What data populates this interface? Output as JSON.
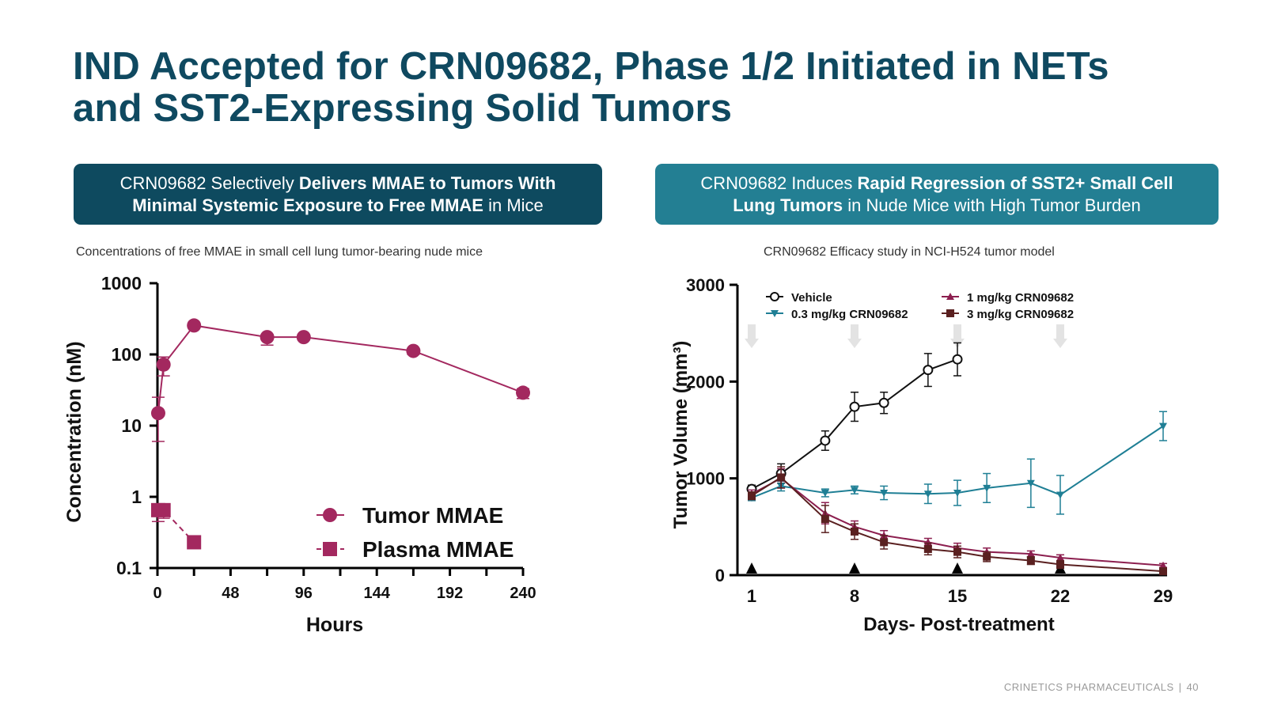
{
  "slide": {
    "title_line1": "IND Accepted for CRN09682, Phase 1/2 Initiated in NETs",
    "title_line2": "and SST2-Expressing Solid Tumors"
  },
  "banners": {
    "left": {
      "l1_a": "CRN09682 Selectively ",
      "l1_b": "Delivers MMAE to Tumors With",
      "l2_a": "Minimal Systemic Exposure to Free MMAE",
      "l2_b": " in Mice"
    },
    "right": {
      "l1_a": "CRN09682 Induces ",
      "l1_b": "Rapid Regression of SST2+ Small Cell",
      "l2_a": "Lung Tumors",
      "l2_b": " in Nude Mice with High Tumor Burden"
    }
  },
  "subtitles": {
    "left": "Concentrations of free MMAE in small cell lung tumor-bearing nude mice",
    "right": "CRN09682 Efficacy study in NCI-H524 tumor model"
  },
  "footer": {
    "company": "CRINETICS PHARMACEUTICALS",
    "separator": "|",
    "page": "40"
  },
  "colors": {
    "title": "#0f4960",
    "banner_left": "#0e4a5f",
    "banner_right": "#237f93",
    "tumor_mmae": "#a3285f",
    "plasma_mmae": "#a3285f",
    "vehicle": "#111111",
    "dose_0_3": "#1f7f95",
    "dose_1": "#8c1f4f",
    "dose_3": "#5a2020",
    "dose_arrow": "#e3e3e3"
  },
  "chart_data": [
    {
      "type": "scatter",
      "yscale": "log",
      "xlabel": "Hours",
      "ylabel": "Concentration (nM)",
      "xlim": [
        0,
        240
      ],
      "ylim": [
        0.1,
        1000
      ],
      "xticks": [
        0,
        48,
        96,
        144,
        192,
        240
      ],
      "xtick_labels": [
        "0",
        "48",
        "96",
        "144",
        "192",
        "240"
      ],
      "yticks": [
        0.1,
        1,
        10,
        100,
        1000
      ],
      "ytick_labels": [
        "0.1",
        "1",
        "10",
        "100",
        "1000"
      ],
      "legend_position": "bottom-right",
      "series": [
        {
          "name": "Tumor MMAE",
          "marker": "circle",
          "line": "solid",
          "x": [
            0.5,
            4,
            24,
            72,
            96,
            168,
            240
          ],
          "y": [
            15,
            72,
            255,
            175,
            175,
            112,
            29
          ],
          "err_low": [
            6,
            50,
            240,
            135,
            160,
            100,
            24
          ],
          "err_high": [
            25,
            92,
            270,
            190,
            185,
            120,
            33
          ]
        },
        {
          "name": "Plasma MMAE",
          "marker": "square",
          "line": "dashed",
          "x": [
            0.5,
            4,
            24
          ],
          "y": [
            0.65,
            0.65,
            0.23
          ],
          "err_low": [
            0.45,
            0.5,
            0.2
          ],
          "err_high": [
            0.8,
            0.8,
            0.26
          ]
        }
      ]
    },
    {
      "type": "line",
      "xlabel": "Days- Post-treatment",
      "ylabel": "Tumor Volume (mm³)",
      "xlim": [
        1,
        29
      ],
      "ylim": [
        0,
        3000
      ],
      "xticks": [
        1,
        8,
        15,
        22,
        29
      ],
      "xtick_labels": [
        "1",
        "8",
        "15",
        "22",
        "29"
      ],
      "yticks": [
        0,
        1000,
        2000,
        3000
      ],
      "ytick_labels": [
        "0",
        "1000",
        "2000",
        "3000"
      ],
      "dosing_days": [
        1,
        8,
        15,
        22
      ],
      "legend_position": "top",
      "series": [
        {
          "name": "Vehicle",
          "marker": "circle-open",
          "x": [
            1,
            3,
            6,
            8,
            10,
            13,
            15
          ],
          "y": [
            890,
            1050,
            1390,
            1740,
            1780,
            2120,
            2230
          ],
          "err": [
            40,
            100,
            100,
            150,
            110,
            170,
            170
          ]
        },
        {
          "name": "0.3 mg/kg CRN09682",
          "marker": "triangle-down",
          "x": [
            1,
            3,
            6,
            8,
            10,
            13,
            15,
            17,
            20,
            22,
            29
          ],
          "y": [
            800,
            920,
            850,
            880,
            850,
            840,
            850,
            900,
            950,
            830,
            1540
          ],
          "err": [
            30,
            50,
            40,
            40,
            70,
            100,
            130,
            150,
            250,
            200,
            150
          ]
        },
        {
          "name": "1 mg/kg CRN09682",
          "marker": "triangle-up",
          "x": [
            1,
            3,
            6,
            8,
            10,
            13,
            15,
            17,
            20,
            22,
            29
          ],
          "y": [
            840,
            1000,
            640,
            500,
            410,
            340,
            280,
            240,
            220,
            180,
            100
          ],
          "err": [
            40,
            100,
            110,
            60,
            50,
            40,
            50,
            40,
            30,
            30,
            20
          ]
        },
        {
          "name": "3 mg/kg CRN09682",
          "marker": "square",
          "x": [
            1,
            3,
            6,
            8,
            10,
            13,
            15,
            17,
            20,
            22,
            29
          ],
          "y": [
            820,
            1010,
            580,
            450,
            340,
            270,
            240,
            190,
            150,
            110,
            40
          ],
          "err": [
            40,
            110,
            140,
            80,
            70,
            60,
            60,
            50,
            40,
            40,
            20
          ]
        }
      ]
    }
  ]
}
